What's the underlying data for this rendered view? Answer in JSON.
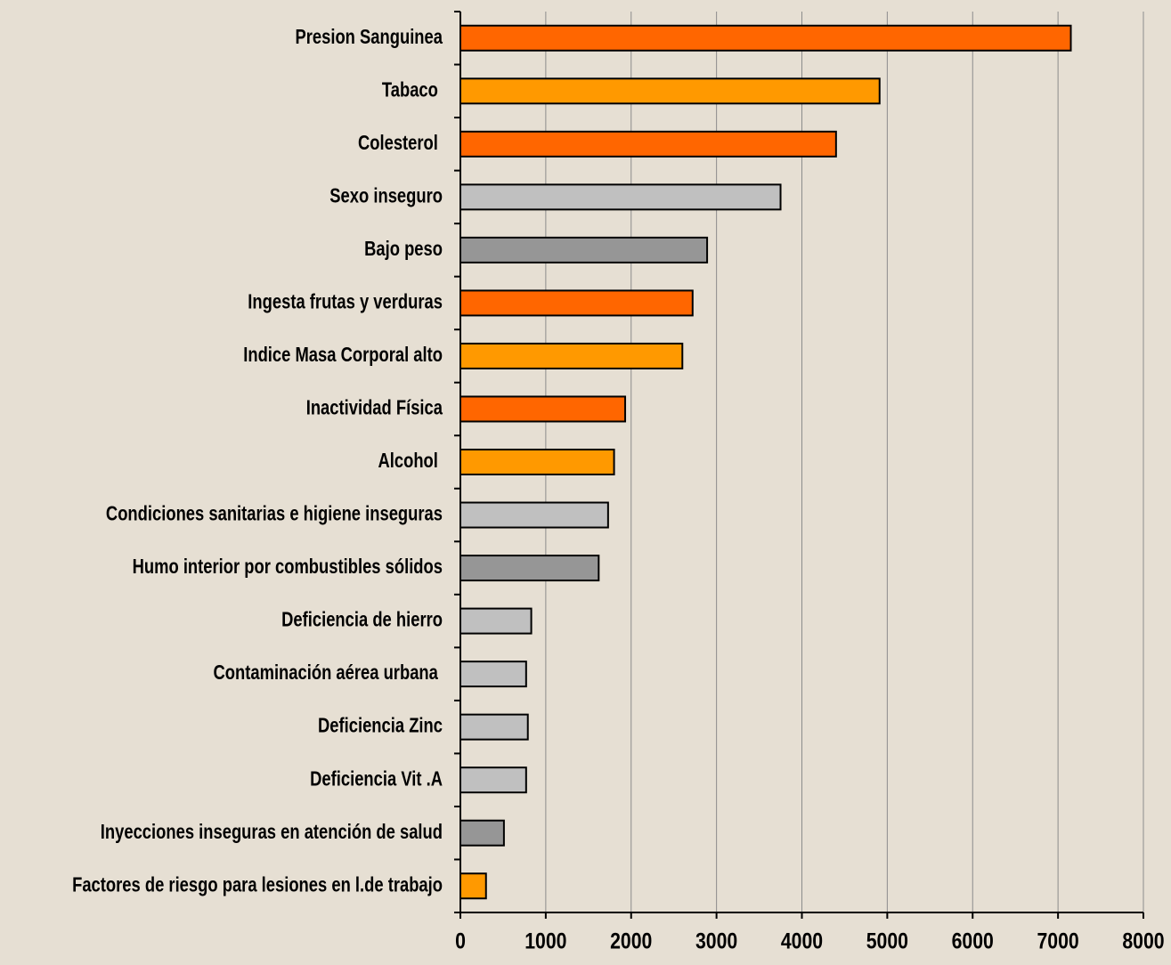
{
  "chart_data": {
    "type": "barh",
    "categories": [
      "Presion Sanguinea",
      "Tabaco ",
      "Colesterol ",
      "Sexo inseguro",
      "Bajo peso",
      "Ingesta frutas y verduras",
      "Indice Masa Corporal alto",
      "Inactividad Física",
      "Alcohol ",
      "Condiciones sanitarias e higiene inseguras",
      "Humo interior por combustibles sólidos",
      "Deficiencia de hierro",
      "Contaminación aérea urbana ",
      "Deficiencia Zinc",
      "Deficiencia Vit .A",
      "Inyecciones inseguras en atención de salud",
      "Factores de riesgo para lesiones en l.de trabajo"
    ],
    "values": [
      7150,
      4910,
      4400,
      3750,
      2890,
      2720,
      2600,
      1930,
      1800,
      1730,
      1620,
      830,
      770,
      790,
      770,
      510,
      300
    ],
    "colors": [
      "#ff6600",
      "#ff9900",
      "#ff6600",
      "#c0c0c0",
      "#969696",
      "#ff6600",
      "#ff9900",
      "#ff6600",
      "#ff9900",
      "#c0c0c0",
      "#969696",
      "#c0c0c0",
      "#c0c0c0",
      "#c0c0c0",
      "#c0c0c0",
      "#969696",
      "#ff9900"
    ],
    "xlim": [
      0,
      8000
    ],
    "xticks": [
      0,
      1000,
      2000,
      3000,
      4000,
      5000,
      6000,
      7000,
      8000
    ],
    "grid": true
  }
}
